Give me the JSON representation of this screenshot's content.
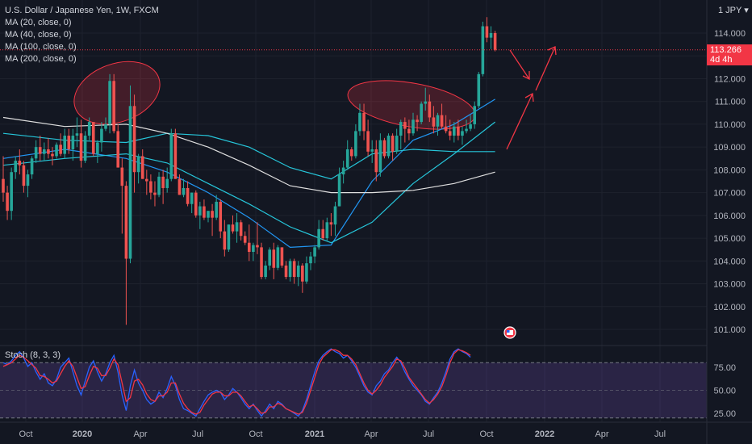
{
  "legend": {
    "symbol": "U.S. Dollar / Japanese Yen, 1W, FXCM",
    "ma20": "MA (20, close, 0)",
    "ma40": "MA (40, close, 0)",
    "ma100": "MA (100, close, 0)",
    "ma200": "MA (200, close, 0)"
  },
  "price_axis": {
    "currency": "1 JPY ▾",
    "labels": [
      "114.000",
      "113.000",
      "112.000",
      "111.000",
      "110.000",
      "109.000",
      "108.000",
      "107.000",
      "106.000",
      "105.000",
      "104.000",
      "103.000",
      "102.000",
      "101.000"
    ],
    "current_price": "113.266",
    "countdown": "4d 4h"
  },
  "stoch": {
    "title": "Stoch (8, 3, 3)",
    "labels": [
      "75.00",
      "50.00",
      "25.00"
    ]
  },
  "time_axis": {
    "labels": [
      "Oct",
      "2020",
      "Apr",
      "Jul",
      "Oct",
      "2021",
      "Apr",
      "Jul",
      "Oct",
      "2022",
      "Apr",
      "Jul"
    ]
  },
  "colors": {
    "background": "#131722",
    "up": "#26a69a",
    "down": "#ef5350",
    "ma20": "#2196f3",
    "ma40": "#26c6da",
    "ma100": "#26c6da",
    "ma200": "#e0e0e0",
    "stoch_k": "#2962ff",
    "stoch_d": "#f23645",
    "stoch_band": "#7e57c2",
    "annotation": "#f23645"
  },
  "chart_data": {
    "type": "candlestick",
    "title": "U.S. Dollar / Japanese Yen, 1W, FXCM",
    "ylim": [
      100.5,
      115
    ],
    "stoch_ylim": [
      0,
      100
    ],
    "candles": [
      [
        107.6,
        108.6,
        106.6,
        107.0
      ],
      [
        107.0,
        107.3,
        105.8,
        106.2
      ],
      [
        106.2,
        108.1,
        105.8,
        107.9
      ],
      [
        107.9,
        108.6,
        107.6,
        108.4
      ],
      [
        108.4,
        108.9,
        107.8,
        108.2
      ],
      [
        108.2,
        108.4,
        107.0,
        107.3
      ],
      [
        107.3,
        108.0,
        106.8,
        107.8
      ],
      [
        107.8,
        108.6,
        107.6,
        108.5
      ],
      [
        108.5,
        109.3,
        108.3,
        109.0
      ],
      [
        109.0,
        109.5,
        108.4,
        108.7
      ],
      [
        108.7,
        109.2,
        108.4,
        108.9
      ],
      [
        108.9,
        109.4,
        108.5,
        108.7
      ],
      [
        108.7,
        109.0,
        108.2,
        108.6
      ],
      [
        108.6,
        109.2,
        108.5,
        109.1
      ],
      [
        109.1,
        109.6,
        108.6,
        108.7
      ],
      [
        108.7,
        109.8,
        108.5,
        109.5
      ],
      [
        109.5,
        109.8,
        108.7,
        108.9
      ],
      [
        108.9,
        109.8,
        108.4,
        109.5
      ],
      [
        109.5,
        110.3,
        109.0,
        109.6
      ],
      [
        109.6,
        110.2,
        108.1,
        108.4
      ],
      [
        108.4,
        109.7,
        108.3,
        109.5
      ],
      [
        109.5,
        110.3,
        109.3,
        110.1
      ],
      [
        110.1,
        110.0,
        108.6,
        108.7
      ],
      [
        108.7,
        109.3,
        108.3,
        109.2
      ],
      [
        109.2,
        110.1,
        108.8,
        109.8
      ],
      [
        109.8,
        110.3,
        109.7,
        110.0
      ],
      [
        110.0,
        112.2,
        109.6,
        111.9
      ],
      [
        111.9,
        112.2,
        109.6,
        109.7
      ],
      [
        109.7,
        110.0,
        108.1,
        108.1
      ],
      [
        108.1,
        108.5,
        105.2,
        107.3
      ],
      [
        107.3,
        107.5,
        101.2,
        104.1
      ],
      [
        104.1,
        111.7,
        103.9,
        110.8
      ],
      [
        110.8,
        111.3,
        107.0,
        107.9
      ],
      [
        107.9,
        108.7,
        107.4,
        108.6
      ],
      [
        108.6,
        108.9,
        107.6,
        107.6
      ],
      [
        107.6,
        108.0,
        106.9,
        107.5
      ],
      [
        107.5,
        107.8,
        106.7,
        107.0
      ],
      [
        107.0,
        107.5,
        106.4,
        106.9
      ],
      [
        106.9,
        107.9,
        106.8,
        107.7
      ],
      [
        107.7,
        108.0,
        106.5,
        107.2
      ],
      [
        107.2,
        108.1,
        107.0,
        107.6
      ],
      [
        107.6,
        109.8,
        107.5,
        109.6
      ],
      [
        109.6,
        109.8,
        107.6,
        107.6
      ],
      [
        107.6,
        107.8,
        106.9,
        106.9
      ],
      [
        106.9,
        107.6,
        106.8,
        107.2
      ],
      [
        107.2,
        107.5,
        106.4,
        106.5
      ],
      [
        106.5,
        107.0,
        106.1,
        107.0
      ],
      [
        107.0,
        107.1,
        105.9,
        106.0
      ],
      [
        106.0,
        106.6,
        105.4,
        106.4
      ],
      [
        106.4,
        106.7,
        105.8,
        105.9
      ],
      [
        105.9,
        106.2,
        105.7,
        106.2
      ],
      [
        106.2,
        106.5,
        105.1,
        105.9
      ],
      [
        105.9,
        106.9,
        105.8,
        106.6
      ],
      [
        106.6,
        106.7,
        105.0,
        105.3
      ],
      [
        105.3,
        105.8,
        104.2,
        104.5
      ],
      [
        104.5,
        105.6,
        104.4,
        105.6
      ],
      [
        105.6,
        106.0,
        105.2,
        105.3
      ],
      [
        105.3,
        106.1,
        104.8,
        105.7
      ],
      [
        105.7,
        105.8,
        104.9,
        105.1
      ],
      [
        105.1,
        105.3,
        104.7,
        104.8
      ],
      [
        104.8,
        105.6,
        104.0,
        104.4
      ],
      [
        104.4,
        104.8,
        104.0,
        104.7
      ],
      [
        104.7,
        105.7,
        104.3,
        104.6
      ],
      [
        104.6,
        104.8,
        103.2,
        103.3
      ],
      [
        103.3,
        104.0,
        103.2,
        103.8
      ],
      [
        103.8,
        104.6,
        103.6,
        104.5
      ],
      [
        104.5,
        104.8,
        103.2,
        103.7
      ],
      [
        103.7,
        104.7,
        103.6,
        104.6
      ],
      [
        104.6,
        104.6,
        103.7,
        103.8
      ],
      [
        103.8,
        104.0,
        103.2,
        103.3
      ],
      [
        103.3,
        104.1,
        103.1,
        104.0
      ],
      [
        104.0,
        104.1,
        103.0,
        103.3
      ],
      [
        103.3,
        104.0,
        102.9,
        103.8
      ],
      [
        103.8,
        103.9,
        102.6,
        103.1
      ],
      [
        103.1,
        104.2,
        103.0,
        103.9
      ],
      [
        103.9,
        104.4,
        103.6,
        104.2
      ],
      [
        104.2,
        104.7,
        103.9,
        104.6
      ],
      [
        104.6,
        105.8,
        104.5,
        105.4
      ],
      [
        105.4,
        105.8,
        104.9,
        105.0
      ],
      [
        105.0,
        105.9,
        104.9,
        105.7
      ],
      [
        105.7,
        106.1,
        105.1,
        105.6
      ],
      [
        105.6,
        106.6,
        105.1,
        106.4
      ],
      [
        106.4,
        108.1,
        106.4,
        107.8
      ],
      [
        107.8,
        108.4,
        107.4,
        108.1
      ],
      [
        108.1,
        109.3,
        108.0,
        108.9
      ],
      [
        108.9,
        109.0,
        108.4,
        108.6
      ],
      [
        108.6,
        110.0,
        108.5,
        109.7
      ],
      [
        109.7,
        110.9,
        109.5,
        110.5
      ],
      [
        110.5,
        110.9,
        109.3,
        109.7
      ],
      [
        109.7,
        110.2,
        108.6,
        108.8
      ],
      [
        108.8,
        109.3,
        108.3,
        108.9
      ],
      [
        108.9,
        109.3,
        107.5,
        107.9
      ],
      [
        107.9,
        109.6,
        107.7,
        109.3
      ],
      [
        109.3,
        109.4,
        108.5,
        108.6
      ],
      [
        108.6,
        109.6,
        108.5,
        109.5
      ],
      [
        109.5,
        109.6,
        108.4,
        108.8
      ],
      [
        108.8,
        109.8,
        108.7,
        109.5
      ],
      [
        109.5,
        110.2,
        108.9,
        110.1
      ],
      [
        110.1,
        110.3,
        109.2,
        109.8
      ],
      [
        109.8,
        110.2,
        109.3,
        109.6
      ],
      [
        109.6,
        110.5,
        109.5,
        110.2
      ],
      [
        110.2,
        110.4,
        109.7,
        110.1
      ],
      [
        110.1,
        111.0,
        110.0,
        110.9
      ],
      [
        110.9,
        111.6,
        110.6,
        111.0
      ],
      [
        111.0,
        111.3,
        110.1,
        110.3
      ],
      [
        110.3,
        110.8,
        109.6,
        109.9
      ],
      [
        109.9,
        110.5,
        109.5,
        110.4
      ],
      [
        110.4,
        110.9,
        109.8,
        109.9
      ],
      [
        109.9,
        110.4,
        109.6,
        109.7
      ],
      [
        109.7,
        110.2,
        109.3,
        109.5
      ],
      [
        109.5,
        110.1,
        109.2,
        109.9
      ],
      [
        109.9,
        110.2,
        109.3,
        109.5
      ],
      [
        109.5,
        109.9,
        109.1,
        109.7
      ],
      [
        109.7,
        110.2,
        109.6,
        109.8
      ],
      [
        109.8,
        110.4,
        109.7,
        110.0
      ],
      [
        110.0,
        111.0,
        109.8,
        110.8
      ],
      [
        110.8,
        112.3,
        110.7,
        112.2
      ],
      [
        112.2,
        114.5,
        112.1,
        114.3
      ],
      [
        114.3,
        114.7,
        113.6,
        113.8
      ],
      [
        113.8,
        114.3,
        113.3,
        114.0
      ],
      [
        114.0,
        114.1,
        113.2,
        113.266
      ]
    ],
    "ma_series": [
      {
        "name": "MA (20, close, 0)",
        "values": [
          [
            0,
            108.5
          ],
          [
            15,
            108.9
          ],
          [
            30,
            108.5
          ],
          [
            40,
            107.9
          ],
          [
            50,
            107.0
          ],
          [
            60,
            105.9
          ],
          [
            70,
            104.6
          ],
          [
            80,
            104.7
          ],
          [
            90,
            107.5
          ],
          [
            100,
            109.3
          ],
          [
            110,
            110.0
          ],
          [
            120,
            111.1
          ]
        ]
      },
      {
        "name": "MA (40, close, 0)",
        "values": [
          [
            0,
            108.2
          ],
          [
            15,
            108.5
          ],
          [
            30,
            108.7
          ],
          [
            40,
            108.3
          ],
          [
            50,
            107.4
          ],
          [
            60,
            106.5
          ],
          [
            70,
            105.5
          ],
          [
            80,
            104.8
          ],
          [
            90,
            105.7
          ],
          [
            100,
            107.4
          ],
          [
            110,
            108.7
          ],
          [
            120,
            110.1
          ]
        ]
      },
      {
        "name": "MA (100, close, 0)",
        "values": [
          [
            0,
            109.6
          ],
          [
            15,
            109.3
          ],
          [
            30,
            109.2
          ],
          [
            40,
            109.6
          ],
          [
            50,
            109.5
          ],
          [
            60,
            109.0
          ],
          [
            70,
            108.1
          ],
          [
            80,
            107.6
          ],
          [
            90,
            108.7
          ],
          [
            100,
            108.9
          ],
          [
            110,
            108.8
          ],
          [
            120,
            108.8
          ]
        ]
      },
      {
        "name": "MA (200, close, 0)",
        "values": [
          [
            0,
            110.3
          ],
          [
            15,
            109.9
          ],
          [
            30,
            110.0
          ],
          [
            40,
            109.6
          ],
          [
            50,
            109.0
          ],
          [
            60,
            108.2
          ],
          [
            70,
            107.3
          ],
          [
            80,
            107.0
          ],
          [
            90,
            107.0
          ],
          [
            100,
            107.1
          ],
          [
            110,
            107.4
          ],
          [
            120,
            107.9
          ]
        ]
      }
    ],
    "stoch_k": [
      80,
      78,
      82,
      88,
      92,
      85,
      76,
      80,
      70,
      62,
      68,
      58,
      55,
      62,
      75,
      80,
      85,
      70,
      55,
      45,
      60,
      75,
      82,
      70,
      60,
      68,
      80,
      88,
      70,
      45,
      28,
      55,
      72,
      58,
      50,
      40,
      35,
      38,
      48,
      42,
      52,
      65,
      55,
      40,
      30,
      28,
      25,
      22,
      30,
      38,
      45,
      48,
      50,
      48,
      40,
      45,
      52,
      48,
      42,
      35,
      30,
      35,
      28,
      22,
      28,
      35,
      30,
      38,
      35,
      30,
      28,
      25,
      22,
      28,
      40,
      55,
      70,
      82,
      88,
      92,
      95,
      92,
      90,
      85,
      88,
      82,
      75,
      65,
      55,
      48,
      45,
      55,
      60,
      68,
      72,
      80,
      86,
      80,
      70,
      62,
      55,
      50,
      45,
      38,
      35,
      42,
      48,
      58,
      70,
      84,
      92,
      95,
      92,
      90,
      86
    ],
    "stoch_d": [
      76,
      78,
      80,
      84,
      88,
      86,
      82,
      78,
      74,
      66,
      65,
      62,
      58,
      60,
      68,
      76,
      82,
      76,
      64,
      52,
      54,
      66,
      76,
      74,
      66,
      66,
      74,
      84,
      78,
      58,
      38,
      42,
      60,
      62,
      56,
      46,
      40,
      38,
      44,
      44,
      48,
      58,
      58,
      46,
      36,
      30,
      26,
      24,
      26,
      34,
      40,
      46,
      48,
      48,
      44,
      44,
      48,
      48,
      44,
      38,
      32,
      34,
      30,
      25,
      26,
      32,
      32,
      36,
      34,
      30,
      28,
      26,
      24,
      26,
      36,
      50,
      64,
      78,
      86,
      90,
      94,
      94,
      92,
      88,
      88,
      84,
      78,
      68,
      58,
      50,
      46,
      50,
      56,
      64,
      70,
      76,
      84,
      82,
      74,
      64,
      58,
      52,
      46,
      40,
      36,
      40,
      46,
      54,
      66,
      80,
      90,
      94,
      93,
      91,
      88
    ]
  }
}
